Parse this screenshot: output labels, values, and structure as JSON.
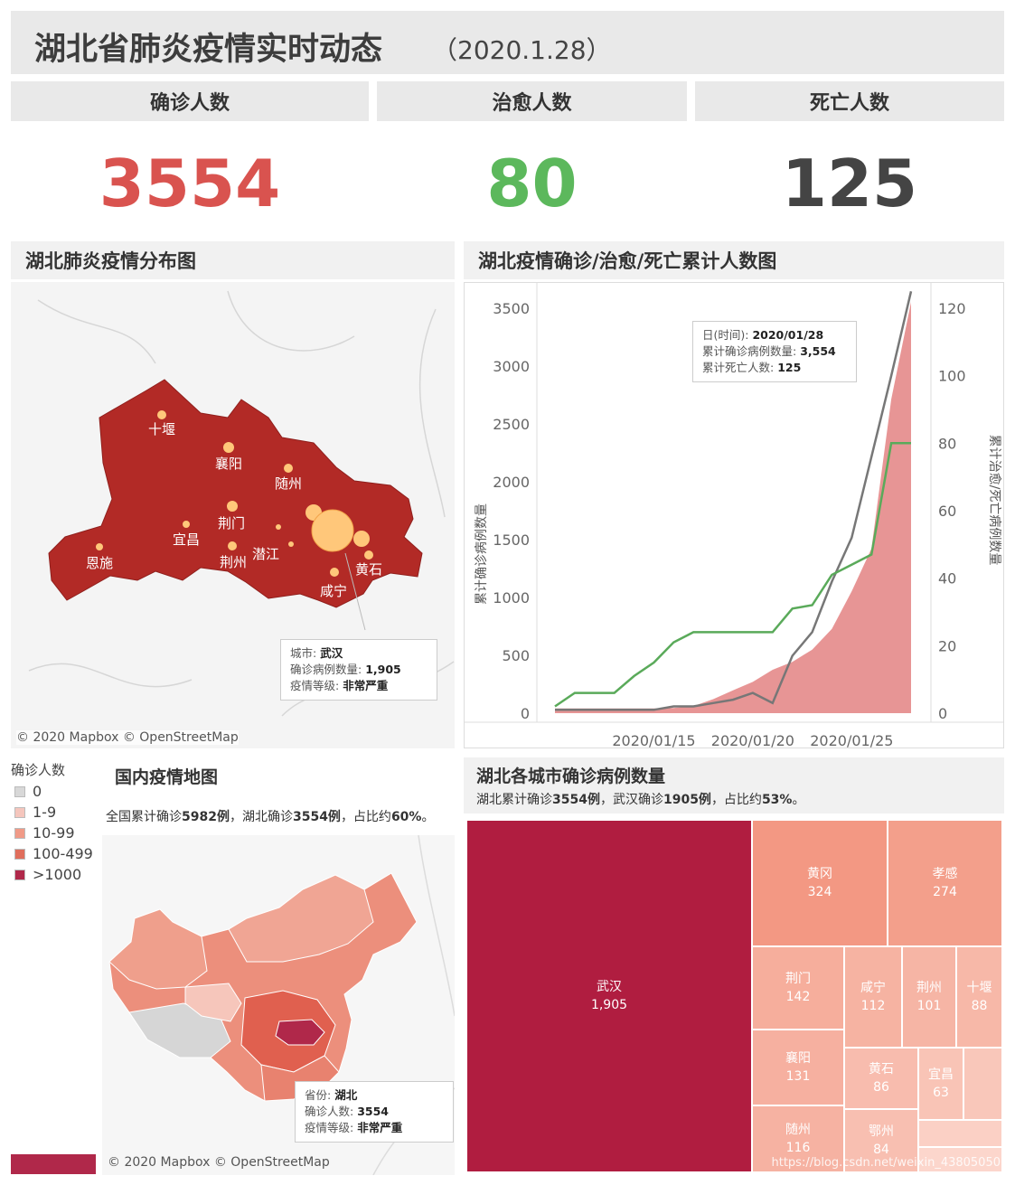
{
  "header": {
    "title": "湖北省肺炎疫情实时动态",
    "date": "（2020.1.28）"
  },
  "kpis": [
    {
      "label": "确诊人数",
      "value": "3554",
      "color": "#d9534f"
    },
    {
      "label": "治愈人数",
      "value": "80",
      "color": "#5cb85c"
    },
    {
      "label": "死亡人数",
      "value": "125",
      "color": "#444444"
    }
  ],
  "hubei_map": {
    "title": "湖北肺炎疫情分布图",
    "cities": [
      "十堰",
      "襄阳",
      "随州",
      "荆门",
      "宜昌",
      "恩施",
      "潜江",
      "荆州",
      "黄石",
      "咸宁"
    ],
    "tooltip": {
      "k1": "城市:",
      "v1": "武汉",
      "k2": "确诊病例数量:",
      "v2": "1,905",
      "k3": "疫情等级:",
      "v3": "非常严重"
    },
    "attribution": "© 2020 Mapbox © OpenStreetMap",
    "fill": "#b22a26"
  },
  "cumulative": {
    "title": "湖北疫情确诊/治愈/死亡累计人数图",
    "tooltip": {
      "k1": "日(时间):",
      "v1": "2020/01/28",
      "k2": "累计确诊病例数量:",
      "v2": "3,554",
      "k3": "累计死亡人数:",
      "v3": "125"
    }
  },
  "chart_data": {
    "type": "line",
    "title": "湖北疫情确诊/治愈/死亡累计人数图",
    "x_ticks": [
      "2020/01/15",
      "2020/01/20",
      "2020/01/25"
    ],
    "ylabel_left": "累计确诊病例数量",
    "ylabel_right": "累计治愈/死亡病例数量",
    "ylim_left": [
      0,
      3500
    ],
    "ylim_right": [
      0,
      120
    ],
    "yticks_left": [
      0,
      500,
      1000,
      1500,
      2000,
      2500,
      3000,
      3500
    ],
    "yticks_right": [
      0,
      20,
      40,
      60,
      80,
      100,
      120
    ],
    "x": [
      "2020/01/10",
      "2020/01/11",
      "2020/01/12",
      "2020/01/13",
      "2020/01/14",
      "2020/01/15",
      "2020/01/16",
      "2020/01/17",
      "2020/01/18",
      "2020/01/19",
      "2020/01/20",
      "2020/01/21",
      "2020/01/22",
      "2020/01/23",
      "2020/01/24",
      "2020/01/25",
      "2020/01/26",
      "2020/01/27",
      "2020/01/28"
    ],
    "series": [
      {
        "axis": "left",
        "style": "area",
        "color": "#e48a8a",
        "values": [
          41,
          41,
          41,
          41,
          41,
          41,
          45,
          62,
          121,
          198,
          270,
          375,
          444,
          549,
          729,
          1052,
          1423,
          2714,
          3554
        ]
      },
      {
        "axis": "right",
        "style": "line",
        "color": "#777777",
        "values": [
          1,
          1,
          1,
          1,
          1,
          1,
          2,
          2,
          3,
          4,
          6,
          3,
          17,
          24,
          39,
          52,
          76,
          100,
          125
        ]
      },
      {
        "axis": "right",
        "style": "line",
        "color": "#5aaa5a",
        "values": [
          2,
          6,
          6,
          6,
          11,
          15,
          21,
          24,
          24,
          24,
          24,
          24,
          31,
          32,
          41,
          44,
          47,
          80,
          80
        ]
      }
    ]
  },
  "china_map": {
    "title": "国内疫情地图",
    "subtitle_a": "全国累计确诊",
    "subtitle_b": "5982例",
    "subtitle_c": "，湖北确诊",
    "subtitle_d": "3554例",
    "subtitle_e": "，占比约",
    "subtitle_f": "60%",
    "subtitle_g": "。",
    "legend_title": "确诊人数",
    "legend": [
      {
        "label": "0",
        "color": "#d8d8d8"
      },
      {
        "label": "1-9",
        "color": "#f5c6bd"
      },
      {
        "label": "10-99",
        "color": "#f09a87"
      },
      {
        "label": "100-499",
        "color": "#e06e5c"
      },
      {
        "label": ">1000",
        "color": "#b0284a"
      }
    ],
    "tooltip": {
      "k1": "省份:",
      "v1": "湖北",
      "k2": "确诊人数:",
      "v2": "3554",
      "k3": "疫情等级:",
      "v3": "非常严重"
    },
    "attribution": "© 2020 Mapbox © OpenStreetMap"
  },
  "treemap": {
    "title": "湖北各城市确诊病例数量",
    "subtitle_a": "湖北累计确诊",
    "subtitle_b": "3554例",
    "subtitle_c": "，武汉确诊",
    "subtitle_d": "1905例",
    "subtitle_e": "，占比约",
    "subtitle_f": "53%",
    "subtitle_g": "。",
    "cells": [
      {
        "name": "武汉",
        "value": "1,905"
      },
      {
        "name": "黄冈",
        "value": "324"
      },
      {
        "name": "孝感",
        "value": "274"
      },
      {
        "name": "荆门",
        "value": "142"
      },
      {
        "name": "咸宁",
        "value": "112"
      },
      {
        "name": "荆州",
        "value": "101"
      },
      {
        "name": "十堰",
        "value": "88"
      },
      {
        "name": "襄阳",
        "value": "131"
      },
      {
        "name": "黄石",
        "value": "86"
      },
      {
        "name": "宜昌",
        "value": "63"
      },
      {
        "name": "随州",
        "value": "116"
      },
      {
        "name": "鄂州",
        "value": "84"
      }
    ],
    "watermark": "https://blog.csdn.net/weixin_43805050"
  }
}
